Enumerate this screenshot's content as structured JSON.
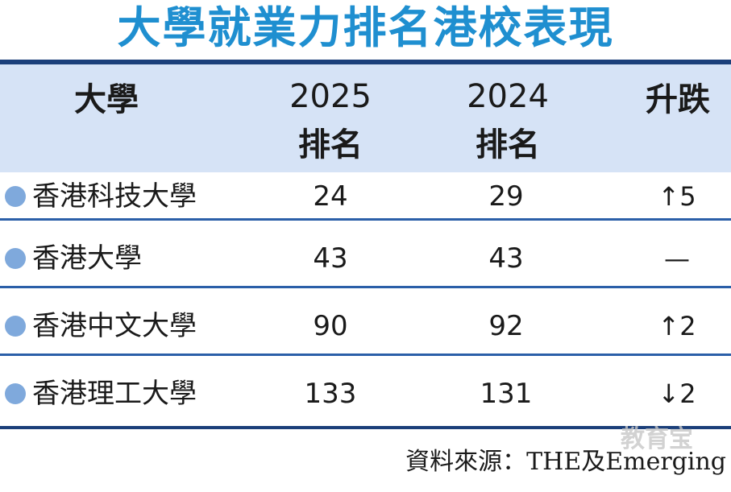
{
  "title": "大學就業力排名港校表現",
  "header": {
    "university": "大學",
    "year2025": "2025",
    "year2025_sub": "排名",
    "year2024": "2024",
    "year2024_sub": "排名",
    "change": "升跌"
  },
  "rows": [
    {
      "name": "香港科技大學",
      "rank2025": "24",
      "rank2024": "29",
      "change": "↑5"
    },
    {
      "name": "香港大學",
      "rank2025": "43",
      "rank2024": "43",
      "change": "—"
    },
    {
      "name": "香港中文大學",
      "rank2025": "90",
      "rank2024": "92",
      "change": "↑2"
    },
    {
      "name": "香港理工大學",
      "rank2025": "133",
      "rank2024": "131",
      "change": "↓2"
    }
  ],
  "source": "資料來源：THE及Emerging",
  "watermark": "教育宝",
  "colors": {
    "title": "#1f8fd0",
    "header_bg": "#d6e3f6",
    "rule": "#1b3f7a",
    "dot": "#7fa9dc"
  }
}
